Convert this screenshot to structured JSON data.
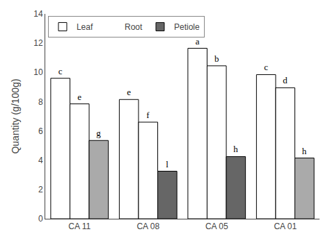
{
  "chart_data": {
    "type": "bar",
    "categories": [
      "CA 11",
      "CA 08",
      "CA 05",
      "CA 01"
    ],
    "series": [
      {
        "name": "Leaf",
        "color": "#ffffff",
        "values": [
          9.6,
          8.15,
          11.65,
          9.85
        ],
        "labels": [
          "c",
          "e",
          "a",
          "c"
        ]
      },
      {
        "name": "Root",
        "color": "#ffffff",
        "marker": "none",
        "values": [
          7.85,
          6.6,
          10.45,
          8.95
        ],
        "labels": [
          "e",
          "f",
          "b",
          "d"
        ]
      },
      {
        "name": "Petiole",
        "color": "#666666",
        "colors": [
          "#aaaaaa",
          "#666666",
          "#666666",
          "#aaaaaa"
        ],
        "values": [
          5.35,
          3.25,
          4.25,
          4.15
        ],
        "labels": [
          "g",
          "l",
          "h",
          "h"
        ]
      }
    ],
    "ylabel": "Quantity (g/100g)",
    "ylim": [
      0,
      14
    ],
    "yticks": [
      0,
      2,
      4,
      6,
      8,
      10,
      12,
      14
    ],
    "legend": "upper left",
    "grid": false
  }
}
